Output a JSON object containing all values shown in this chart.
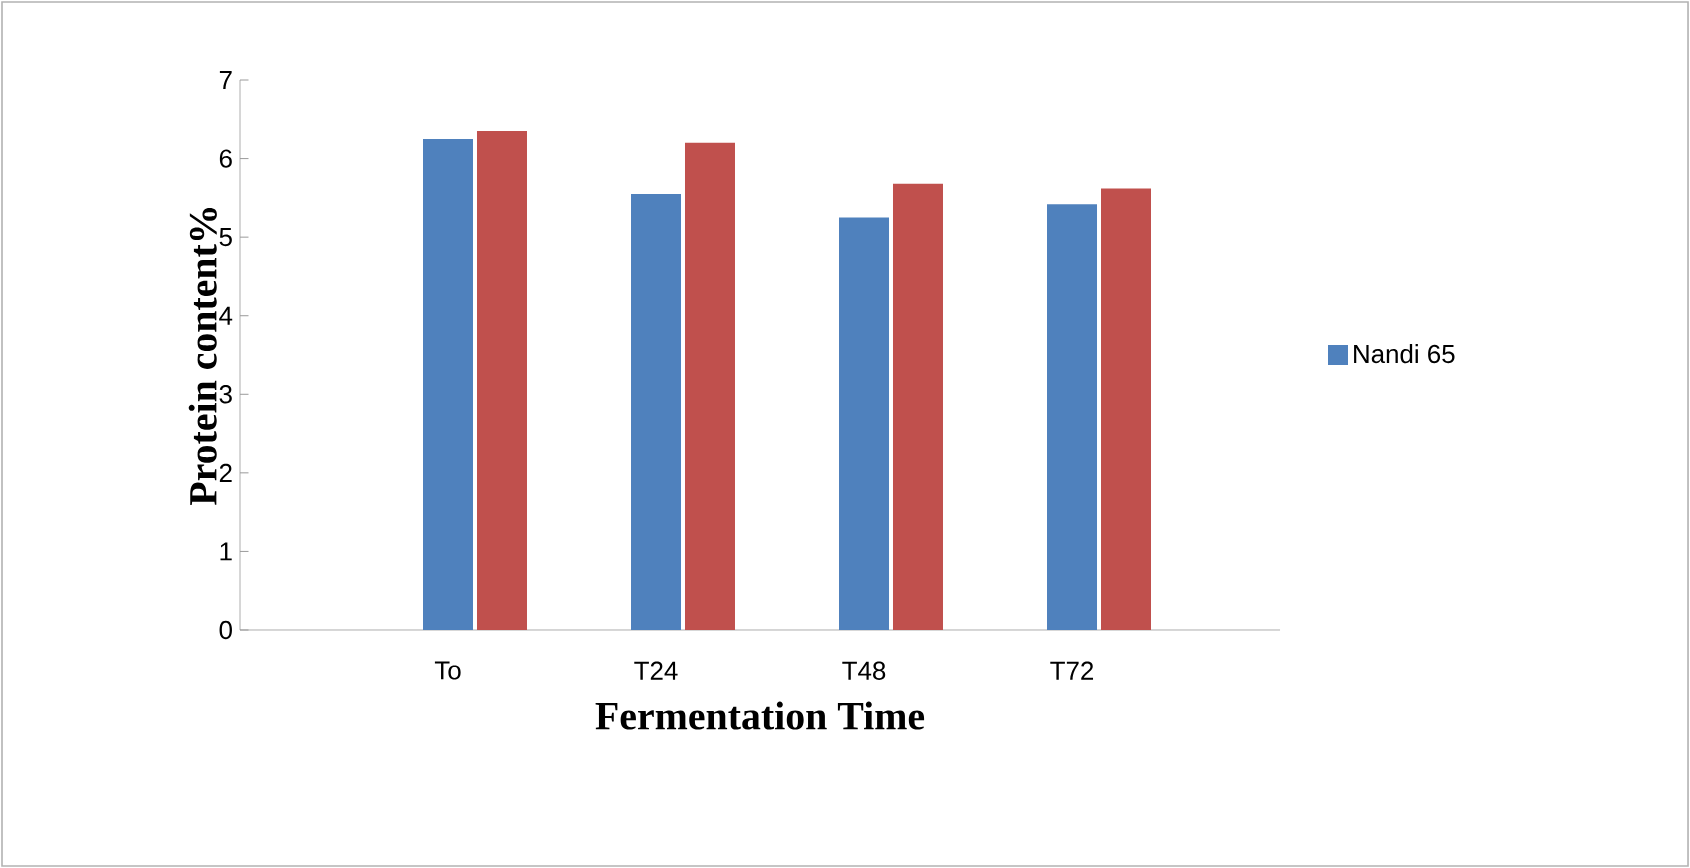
{
  "chart_data": {
    "type": "bar",
    "xlabel": "Fermentation Time",
    "ylabel": "Protein content%",
    "categories": [
      "To",
      "T24",
      "T48",
      "T72"
    ],
    "series": [
      {
        "name": "Nandi 65",
        "color": "#4f81bd",
        "values": [
          6.25,
          5.55,
          5.25,
          5.42
        ]
      },
      {
        "color": "#c0504d",
        "values": [
          6.35,
          6.2,
          5.68,
          5.62
        ]
      }
    ],
    "ylim": [
      0,
      7
    ],
    "yticks": [
      0,
      1,
      2,
      3,
      4,
      5,
      6,
      7
    ],
    "grid": false,
    "legend": "right"
  }
}
